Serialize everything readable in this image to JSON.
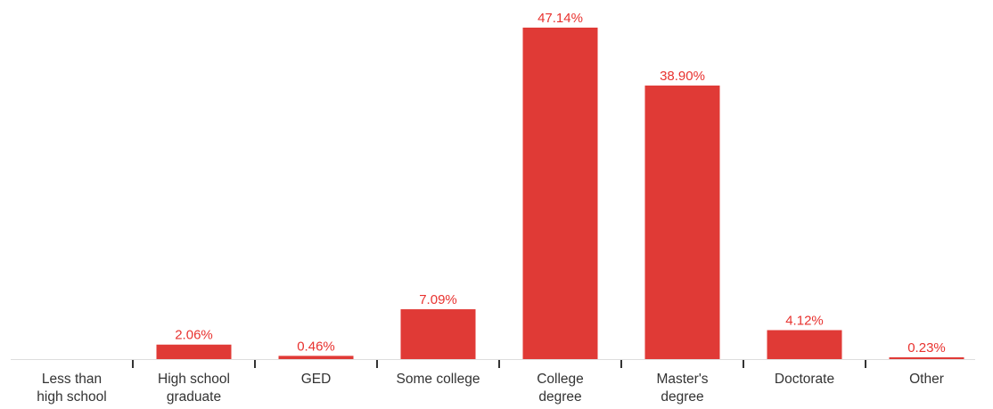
{
  "chart_data": {
    "type": "bar",
    "categories": [
      [
        "Less than",
        "high school"
      ],
      [
        "High school",
        "graduate"
      ],
      [
        "GED"
      ],
      [
        "Some college"
      ],
      [
        "College",
        "degree"
      ],
      [
        "Master's",
        "degree"
      ],
      [
        "Doctorate"
      ],
      [
        "Other"
      ]
    ],
    "values": [
      0.0,
      2.06,
      0.46,
      7.09,
      47.14,
      38.9,
      4.12,
      0.23
    ],
    "data_labels": [
      "",
      "2.06%",
      "0.46%",
      "7.09%",
      "47.14%",
      "38.90%",
      "4.12%",
      "0.23%"
    ],
    "ylim": [
      0,
      47.14
    ],
    "grid": false,
    "colors": {
      "bar": "#e03a36",
      "label": "#e8322f",
      "axis": "#333333"
    }
  }
}
